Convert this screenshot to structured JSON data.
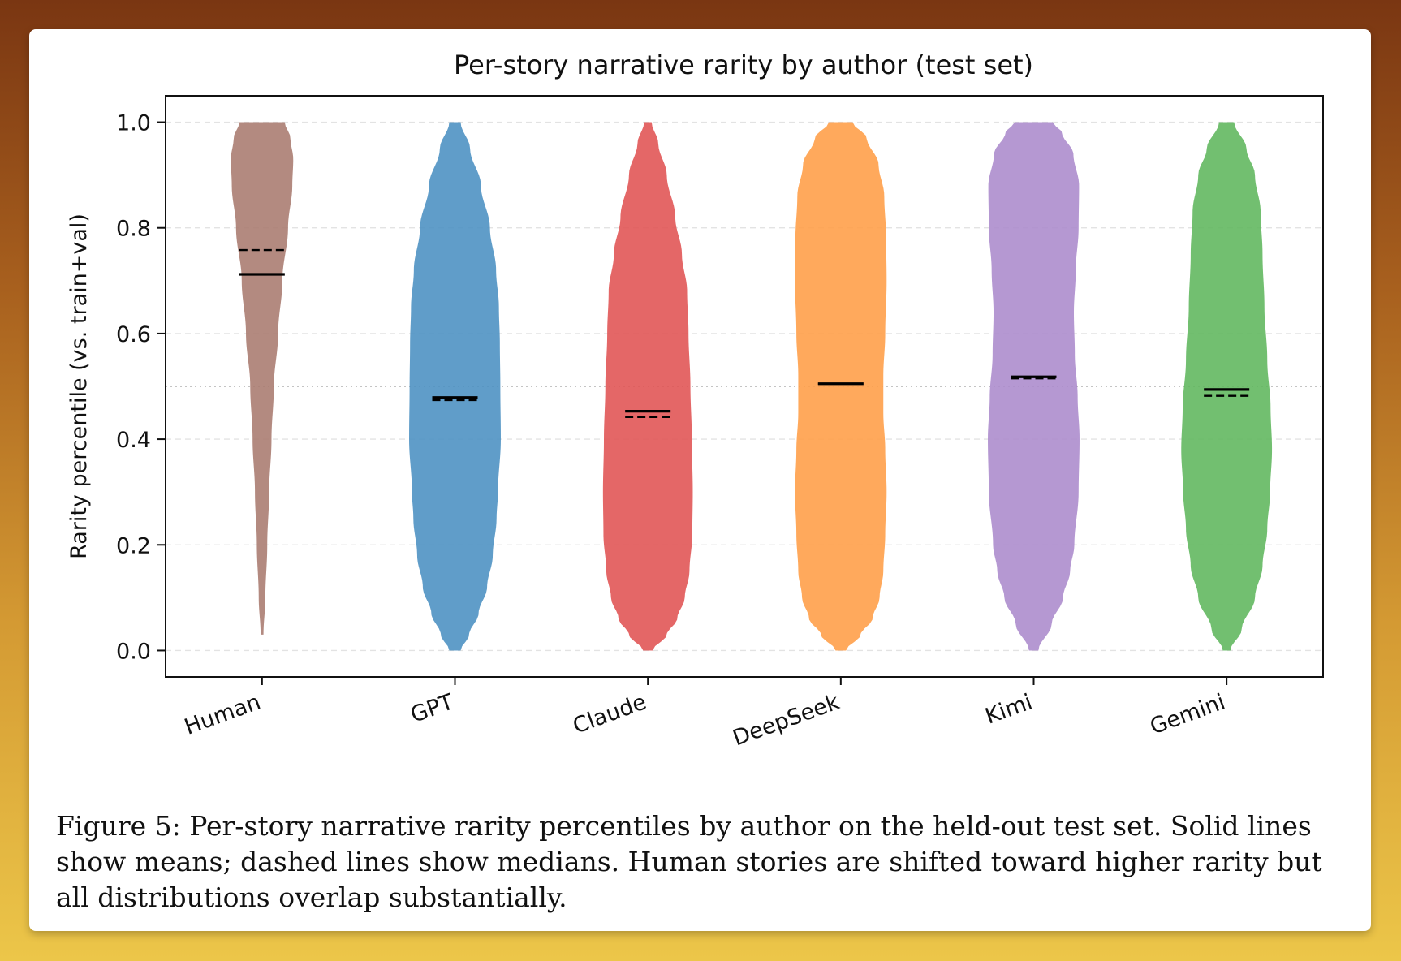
{
  "chart_data": {
    "type": "violin",
    "title": "Per-story narrative rarity by author (test set)",
    "xlabel": "",
    "ylabel": "Rarity percentile (vs. train+val)",
    "ylim": [
      -0.05,
      1.05
    ],
    "yticks": [
      0.0,
      0.2,
      0.4,
      0.6,
      0.8,
      1.0
    ],
    "ytick_labels": [
      "0.0",
      "0.2",
      "0.4",
      "0.6",
      "0.8",
      "1.0"
    ],
    "grid": true,
    "reference_line": 0.5,
    "categories": [
      "Human",
      "GPT",
      "Claude",
      "DeepSeek",
      "Kimi",
      "Gemini"
    ],
    "series": [
      {
        "color": "#a87a6e",
        "mean": 0.712,
        "median": 0.758,
        "min": 0.03,
        "max": 1.0,
        "profile": [
          [
            0.03,
            0.03
          ],
          [
            0.1,
            0.07
          ],
          [
            0.2,
            0.11
          ],
          [
            0.3,
            0.15
          ],
          [
            0.4,
            0.2
          ],
          [
            0.5,
            0.25
          ],
          [
            0.6,
            0.34
          ],
          [
            0.7,
            0.43
          ],
          [
            0.8,
            0.55
          ],
          [
            0.88,
            0.64
          ],
          [
            0.93,
            0.66
          ],
          [
            0.97,
            0.6
          ],
          [
            1.0,
            0.48
          ]
        ]
      },
      {
        "color": "#4a90c2",
        "mean": 0.479,
        "median": 0.474,
        "min": 0.0,
        "max": 1.0,
        "profile": [
          [
            0.0,
            0.12
          ],
          [
            0.03,
            0.3
          ],
          [
            0.07,
            0.5
          ],
          [
            0.12,
            0.68
          ],
          [
            0.18,
            0.8
          ],
          [
            0.25,
            0.88
          ],
          [
            0.3,
            0.91
          ],
          [
            0.4,
            0.97
          ],
          [
            0.5,
            0.96
          ],
          [
            0.58,
            0.95
          ],
          [
            0.65,
            0.93
          ],
          [
            0.72,
            0.87
          ],
          [
            0.8,
            0.74
          ],
          [
            0.88,
            0.55
          ],
          [
            0.95,
            0.32
          ],
          [
            1.0,
            0.12
          ]
        ]
      },
      {
        "color": "#e05252",
        "mean": 0.453,
        "median": 0.442,
        "min": 0.0,
        "max": 1.0,
        "profile": [
          [
            0.0,
            0.1
          ],
          [
            0.03,
            0.4
          ],
          [
            0.06,
            0.62
          ],
          [
            0.1,
            0.78
          ],
          [
            0.15,
            0.88
          ],
          [
            0.22,
            0.94
          ],
          [
            0.3,
            0.95
          ],
          [
            0.4,
            0.93
          ],
          [
            0.5,
            0.9
          ],
          [
            0.6,
            0.86
          ],
          [
            0.68,
            0.83
          ],
          [
            0.75,
            0.72
          ],
          [
            0.82,
            0.58
          ],
          [
            0.9,
            0.4
          ],
          [
            0.96,
            0.22
          ],
          [
            1.0,
            0.08
          ]
        ]
      },
      {
        "color": "#ff9d45",
        "mean": 0.505,
        "median": 0.505,
        "min": 0.0,
        "max": 1.0,
        "profile": [
          [
            0.0,
            0.11
          ],
          [
            0.03,
            0.42
          ],
          [
            0.06,
            0.67
          ],
          [
            0.1,
            0.82
          ],
          [
            0.15,
            0.9
          ],
          [
            0.22,
            0.94
          ],
          [
            0.3,
            0.97
          ],
          [
            0.38,
            0.94
          ],
          [
            0.45,
            0.9
          ],
          [
            0.52,
            0.9
          ],
          [
            0.6,
            0.94
          ],
          [
            0.7,
            0.97
          ],
          [
            0.78,
            0.96
          ],
          [
            0.86,
            0.92
          ],
          [
            0.92,
            0.8
          ],
          [
            0.97,
            0.55
          ],
          [
            1.0,
            0.25
          ]
        ]
      },
      {
        "color": "#ab8acc",
        "mean": 0.518,
        "median": 0.515,
        "min": 0.0,
        "max": 1.0,
        "profile": [
          [
            0.0,
            0.1
          ],
          [
            0.05,
            0.38
          ],
          [
            0.1,
            0.62
          ],
          [
            0.15,
            0.77
          ],
          [
            0.2,
            0.86
          ],
          [
            0.3,
            0.95
          ],
          [
            0.4,
            0.97
          ],
          [
            0.48,
            0.93
          ],
          [
            0.56,
            0.87
          ],
          [
            0.64,
            0.85
          ],
          [
            0.72,
            0.89
          ],
          [
            0.8,
            0.95
          ],
          [
            0.88,
            0.96
          ],
          [
            0.94,
            0.84
          ],
          [
            0.98,
            0.6
          ],
          [
            1.0,
            0.4
          ]
        ]
      },
      {
        "color": "#5fb65c",
        "mean": 0.494,
        "median": 0.482,
        "min": 0.0,
        "max": 1.0,
        "profile": [
          [
            0.0,
            0.08
          ],
          [
            0.04,
            0.32
          ],
          [
            0.1,
            0.6
          ],
          [
            0.16,
            0.76
          ],
          [
            0.23,
            0.86
          ],
          [
            0.3,
            0.92
          ],
          [
            0.38,
            0.96
          ],
          [
            0.46,
            0.93
          ],
          [
            0.55,
            0.86
          ],
          [
            0.65,
            0.8
          ],
          [
            0.75,
            0.76
          ],
          [
            0.83,
            0.72
          ],
          [
            0.9,
            0.6
          ],
          [
            0.95,
            0.42
          ],
          [
            1.0,
            0.16
          ]
        ]
      }
    ],
    "line_legend": {
      "solid": "mean",
      "dashed": "median"
    }
  },
  "caption": "Figure 5: Per-story narrative rarity percentiles by author on the held-out test set. Solid lines show means; dashed lines show medians. Human stories are shifted toward higher rarity but all distributions overlap substantially."
}
